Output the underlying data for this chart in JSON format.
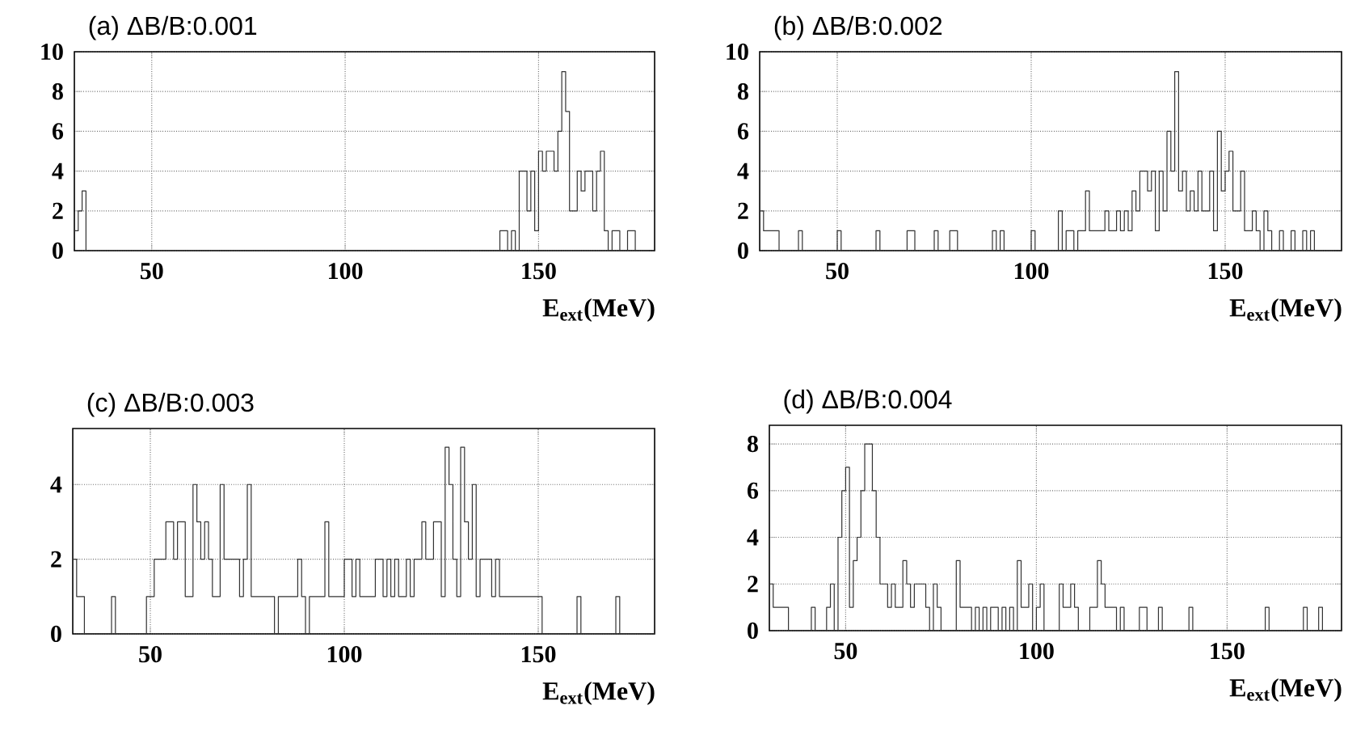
{
  "chart_data": [
    {
      "type": "histogram",
      "title": "(a) ΔB/B:0.001",
      "xlabel": "**E$_{ext}$(MeV)**",
      "color": "#333333",
      "grid": true,
      "xlim": [
        30,
        180
      ],
      "ylim": [
        0,
        10
      ],
      "xticks": [
        50,
        100,
        150
      ],
      "yticks": [
        0,
        2,
        4,
        6,
        8,
        10
      ],
      "bins": [
        30,
        31,
        32,
        33,
        34,
        35,
        36,
        37,
        38,
        39,
        40,
        41,
        42,
        43,
        44,
        45,
        46,
        47,
        48,
        49,
        50,
        51,
        52,
        53,
        54,
        55,
        56,
        57,
        58,
        59,
        60,
        61,
        62,
        63,
        64,
        65,
        66,
        67,
        68,
        69,
        70,
        71,
        72,
        73,
        74,
        75,
        76,
        77,
        78,
        79,
        80,
        81,
        82,
        83,
        84,
        85,
        86,
        87,
        88,
        89,
        90,
        91,
        92,
        93,
        94,
        95,
        96,
        97,
        98,
        99,
        100,
        101,
        102,
        103,
        104,
        105,
        106,
        107,
        108,
        109,
        110,
        111,
        112,
        113,
        114,
        115,
        116,
        117,
        118,
        119,
        120,
        121,
        122,
        123,
        124,
        125,
        126,
        127,
        128,
        129,
        130,
        131,
        132,
        133,
        134,
        135,
        136,
        137,
        138,
        139,
        140,
        141,
        142,
        143,
        144,
        145,
        146,
        147,
        148,
        149,
        150,
        151,
        152,
        153,
        154,
        155,
        156,
        157,
        158,
        159,
        160,
        161,
        162,
        163,
        164,
        165,
        166,
        167,
        168,
        169,
        170,
        171,
        172,
        173,
        174,
        175,
        176,
        177,
        178,
        179,
        180
      ],
      "values": [
        1,
        2,
        3,
        0,
        0,
        0,
        0,
        0,
        0,
        0,
        0,
        0,
        0,
        0,
        0,
        0,
        0,
        0,
        0,
        0,
        0,
        0,
        0,
        0,
        0,
        0,
        0,
        0,
        0,
        0,
        0,
        0,
        0,
        0,
        0,
        0,
        0,
        0,
        0,
        0,
        0,
        0,
        0,
        0,
        0,
        0,
        0,
        0,
        0,
        0,
        0,
        0,
        0,
        0,
        0,
        0,
        0,
        0,
        0,
        0,
        0,
        0,
        0,
        0,
        0,
        0,
        0,
        0,
        0,
        0,
        0,
        0,
        0,
        0,
        0,
        0,
        0,
        0,
        0,
        0,
        0,
        0,
        0,
        0,
        0,
        0,
        0,
        0,
        0,
        0,
        0,
        0,
        0,
        0,
        0,
        0,
        0,
        0,
        0,
        0,
        0,
        0,
        0,
        0,
        0,
        0,
        0,
        0,
        0,
        0,
        1,
        1,
        0,
        1,
        0,
        4,
        4,
        2,
        4,
        1,
        5,
        4,
        5,
        5,
        4,
        6,
        9,
        7,
        2,
        2,
        4,
        3,
        4,
        4,
        2,
        4,
        5,
        1,
        0,
        1,
        1,
        0,
        0,
        1,
        1,
        0,
        0,
        0,
        0,
        0
      ]
    },
    {
      "type": "histogram",
      "title": "(b) ΔB/B:0.002",
      "xlabel": "**E$_{ext}$(MeV)**",
      "color": "#333333",
      "grid": true,
      "xlim": [
        30,
        180
      ],
      "ylim": [
        0,
        10
      ],
      "xticks": [
        50,
        100,
        150
      ],
      "yticks": [
        0,
        2,
        4,
        6,
        8,
        10
      ],
      "bins": [
        30,
        31,
        32,
        33,
        34,
        35,
        36,
        37,
        38,
        39,
        40,
        41,
        42,
        43,
        44,
        45,
        46,
        47,
        48,
        49,
        50,
        51,
        52,
        53,
        54,
        55,
        56,
        57,
        58,
        59,
        60,
        61,
        62,
        63,
        64,
        65,
        66,
        67,
        68,
        69,
        70,
        71,
        72,
        73,
        74,
        75,
        76,
        77,
        78,
        79,
        80,
        81,
        82,
        83,
        84,
        85,
        86,
        87,
        88,
        89,
        90,
        91,
        92,
        93,
        94,
        95,
        96,
        97,
        98,
        99,
        100,
        101,
        102,
        103,
        104,
        105,
        106,
        107,
        108,
        109,
        110,
        111,
        112,
        113,
        114,
        115,
        116,
        117,
        118,
        119,
        120,
        121,
        122,
        123,
        124,
        125,
        126,
        127,
        128,
        129,
        130,
        131,
        132,
        133,
        134,
        135,
        136,
        137,
        138,
        139,
        140,
        141,
        142,
        143,
        144,
        145,
        146,
        147,
        148,
        149,
        150,
        151,
        152,
        153,
        154,
        155,
        156,
        157,
        158,
        159,
        160,
        161,
        162,
        163,
        164,
        165,
        166,
        167,
        168,
        169,
        170,
        171,
        172,
        173,
        174,
        175,
        176,
        177,
        178,
        179,
        180
      ],
      "values": [
        2,
        1,
        1,
        1,
        1,
        0,
        0,
        0,
        0,
        0,
        1,
        0,
        0,
        0,
        0,
        0,
        0,
        0,
        0,
        0,
        1,
        0,
        0,
        0,
        0,
        0,
        0,
        0,
        0,
        0,
        1,
        0,
        0,
        0,
        0,
        0,
        0,
        0,
        1,
        1,
        0,
        0,
        0,
        0,
        0,
        1,
        0,
        0,
        0,
        1,
        1,
        0,
        0,
        0,
        0,
        0,
        0,
        0,
        0,
        0,
        1,
        0,
        1,
        0,
        0,
        0,
        0,
        0,
        0,
        0,
        1,
        0,
        0,
        0,
        0,
        0,
        0,
        2,
        0,
        1,
        1,
        0,
        1,
        1,
        3,
        1,
        1,
        1,
        1,
        2,
        1,
        1,
        2,
        1,
        2,
        1,
        3,
        2,
        4,
        4,
        3,
        4,
        1,
        4,
        2,
        6,
        4,
        9,
        3,
        4,
        2,
        3,
        2,
        4,
        2,
        2,
        4,
        1,
        6,
        3,
        4,
        5,
        2,
        2,
        4,
        1,
        1,
        2,
        1,
        0,
        2,
        1,
        0,
        0,
        1,
        0,
        0,
        1,
        0,
        0,
        1,
        0,
        1,
        0,
        0,
        0,
        0,
        0,
        0,
        0
      ]
    },
    {
      "type": "histogram",
      "title": "(c) ΔB/B:0.003",
      "xlabel": "**E$_{ext}$(MeV)**",
      "color": "#333333",
      "grid": true,
      "xlim": [
        30,
        180
      ],
      "ylim": [
        0,
        5.5
      ],
      "xticks": [
        50,
        100,
        150
      ],
      "yticks": [
        0,
        2,
        4
      ],
      "bins": [
        30,
        31,
        32,
        33,
        34,
        35,
        36,
        37,
        38,
        39,
        40,
        41,
        42,
        43,
        44,
        45,
        46,
        47,
        48,
        49,
        50,
        51,
        52,
        53,
        54,
        55,
        56,
        57,
        58,
        59,
        60,
        61,
        62,
        63,
        64,
        65,
        66,
        67,
        68,
        69,
        70,
        71,
        72,
        73,
        74,
        75,
        76,
        77,
        78,
        79,
        80,
        81,
        82,
        83,
        84,
        85,
        86,
        87,
        88,
        89,
        90,
        91,
        92,
        93,
        94,
        95,
        96,
        97,
        98,
        99,
        100,
        101,
        102,
        103,
        104,
        105,
        106,
        107,
        108,
        109,
        110,
        111,
        112,
        113,
        114,
        115,
        116,
        117,
        118,
        119,
        120,
        121,
        122,
        123,
        124,
        125,
        126,
        127,
        128,
        129,
        130,
        131,
        132,
        133,
        134,
        135,
        136,
        137,
        138,
        139,
        140,
        141,
        142,
        143,
        144,
        145,
        146,
        147,
        148,
        149,
        150,
        151,
        152,
        153,
        154,
        155,
        156,
        157,
        158,
        159,
        160,
        161,
        162,
        163,
        164,
        165,
        166,
        167,
        168,
        169,
        170,
        171,
        172,
        173,
        174,
        175,
        176,
        177,
        178,
        179,
        180
      ],
      "values": [
        2,
        1,
        1,
        0,
        0,
        0,
        0,
        0,
        0,
        0,
        1,
        0,
        0,
        0,
        0,
        0,
        0,
        0,
        0,
        1,
        1,
        2,
        2,
        2,
        3,
        3,
        2,
        3,
        3,
        1,
        1,
        4,
        3,
        2,
        3,
        2,
        1,
        1,
        4,
        2,
        2,
        2,
        2,
        1,
        2,
        4,
        1,
        1,
        1,
        1,
        1,
        1,
        0,
        1,
        1,
        1,
        1,
        1,
        2,
        1,
        0,
        1,
        1,
        1,
        1,
        3,
        1,
        1,
        1,
        1,
        2,
        2,
        1,
        2,
        1,
        1,
        1,
        1,
        2,
        2,
        1,
        2,
        1,
        2,
        1,
        1,
        2,
        1,
        2,
        2,
        3,
        2,
        2,
        3,
        3,
        1,
        5,
        4,
        2,
        1,
        5,
        3,
        2,
        4,
        1,
        2,
        2,
        2,
        1,
        2,
        1,
        1,
        1,
        1,
        1,
        1,
        1,
        1,
        1,
        1,
        1,
        0,
        0,
        0,
        0,
        0,
        0,
        0,
        0,
        0,
        1,
        0,
        0,
        0,
        0,
        0,
        0,
        0,
        0,
        0,
        1,
        0,
        0,
        0,
        0,
        0,
        0,
        0,
        0,
        0
      ]
    },
    {
      "type": "histogram",
      "title": "(d) ΔB/B:0.004",
      "xlabel": "**E$_{ext}$(MeV)**",
      "color": "#333333",
      "grid": true,
      "xlim": [
        30,
        180
      ],
      "ylim": [
        0,
        8.8
      ],
      "xticks": [
        50,
        100,
        150
      ],
      "yticks": [
        0,
        2,
        4,
        6,
        8
      ],
      "bins": [
        30,
        31,
        32,
        33,
        34,
        35,
        36,
        37,
        38,
        39,
        40,
        41,
        42,
        43,
        44,
        45,
        46,
        47,
        48,
        49,
        50,
        51,
        52,
        53,
        54,
        55,
        56,
        57,
        58,
        59,
        60,
        61,
        62,
        63,
        64,
        65,
        66,
        67,
        68,
        69,
        70,
        71,
        72,
        73,
        74,
        75,
        76,
        77,
        78,
        79,
        80,
        81,
        82,
        83,
        84,
        85,
        86,
        87,
        88,
        89,
        90,
        91,
        92,
        93,
        94,
        95,
        96,
        97,
        98,
        99,
        100,
        101,
        102,
        103,
        104,
        105,
        106,
        107,
        108,
        109,
        110,
        111,
        112,
        113,
        114,
        115,
        116,
        117,
        118,
        119,
        120,
        121,
        122,
        123,
        124,
        125,
        126,
        127,
        128,
        129,
        130,
        131,
        132,
        133,
        134,
        135,
        136,
        137,
        138,
        139,
        140,
        141,
        142,
        143,
        144,
        145,
        146,
        147,
        148,
        149,
        150,
        151,
        152,
        153,
        154,
        155,
        156,
        157,
        158,
        159,
        160,
        161,
        162,
        163,
        164,
        165,
        166,
        167,
        168,
        169,
        170,
        171,
        172,
        173,
        174,
        175,
        176,
        177,
        178,
        179,
        180
      ],
      "values": [
        2,
        1,
        1,
        1,
        1,
        0,
        0,
        0,
        0,
        0,
        0,
        1,
        0,
        0,
        0,
        1,
        2,
        0,
        4,
        6,
        7,
        1,
        3,
        4,
        6,
        8,
        8,
        6,
        4,
        2,
        2,
        1,
        2,
        1,
        1,
        3,
        2,
        1,
        2,
        2,
        2,
        1,
        0,
        2,
        1,
        0,
        0,
        0,
        0,
        3,
        1,
        1,
        1,
        0,
        1,
        0,
        1,
        0,
        1,
        1,
        0,
        1,
        0,
        1,
        0,
        3,
        1,
        1,
        2,
        0,
        1,
        2,
        0,
        0,
        0,
        0,
        2,
        1,
        1,
        2,
        1,
        0,
        0,
        0,
        1,
        1,
        3,
        2,
        1,
        1,
        1,
        0,
        1,
        0,
        0,
        0,
        0,
        1,
        1,
        0,
        0,
        0,
        1,
        0,
        0,
        0,
        0,
        0,
        0,
        0,
        1,
        0,
        0,
        0,
        0,
        0,
        0,
        0,
        0,
        0,
        0,
        0,
        0,
        0,
        0,
        0,
        0,
        0,
        0,
        0,
        1,
        0,
        0,
        0,
        0,
        0,
        0,
        0,
        0,
        0,
        1,
        0,
        0,
        0,
        1,
        0,
        0,
        0,
        0,
        0
      ]
    }
  ]
}
